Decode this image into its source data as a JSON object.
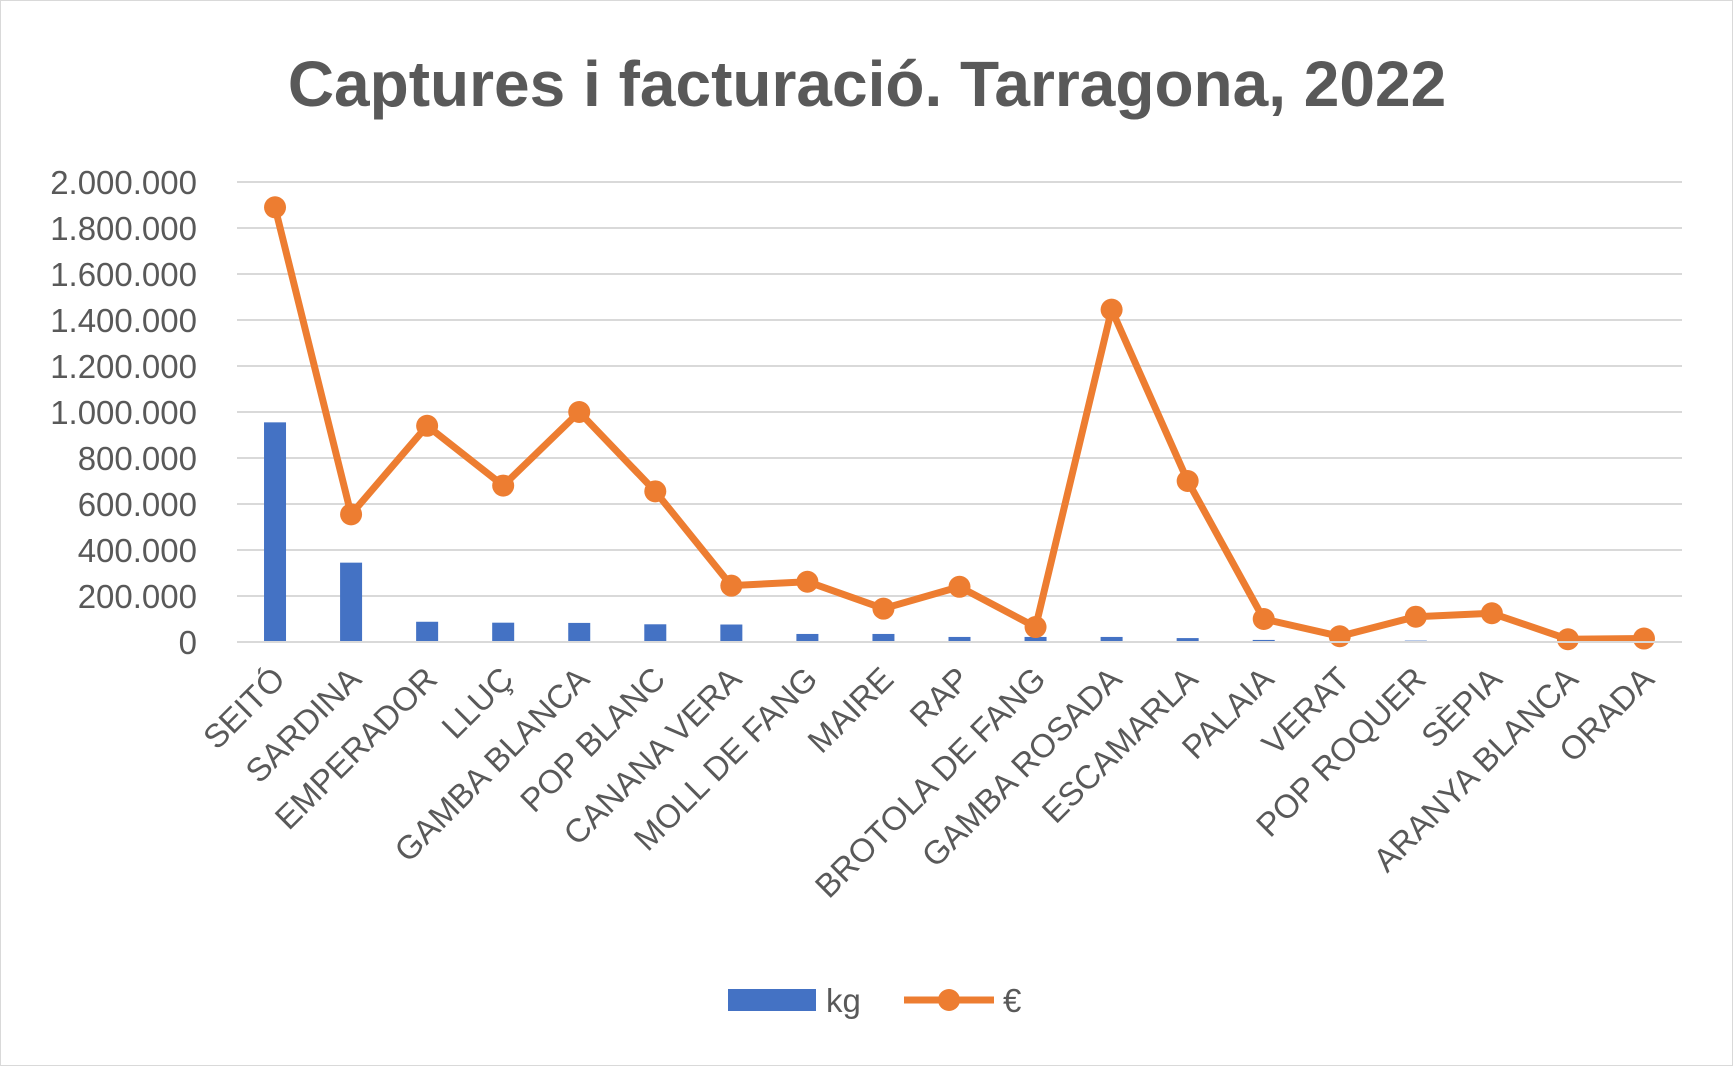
{
  "chart_data": {
    "type": "bar",
    "title": "Captures i facturació. Tarragona, 2022",
    "xlabel": "",
    "ylabel": "",
    "ylim": [
      0,
      2000000
    ],
    "yticks": [
      0,
      200000,
      400000,
      600000,
      800000,
      1000000,
      1200000,
      1400000,
      1600000,
      1800000,
      2000000
    ],
    "ytick_labels": [
      "0",
      "200.000",
      "400.000",
      "600.000",
      "800.000",
      "1.000.000",
      "1.200.000",
      "1.400.000",
      "1.600.000",
      "1.800.000",
      "2.000.000"
    ],
    "grid": true,
    "legend_position": "bottom",
    "categories": [
      "SEITÓ",
      "SARDINA",
      "EMPERADOR",
      "LLUÇ",
      "GAMBA BLANCA",
      "POP BLANC",
      "CANANA VERA",
      "MOLL DE FANG",
      "MAIRE",
      "RAP",
      "BROTOLA DE FANG",
      "GAMBA ROSADA",
      "ESCAMARLA",
      "PALAIA",
      "VERAT",
      "POP ROQUER",
      "SÈPIA",
      "ARANYA BLANCA",
      "ORADA"
    ],
    "series": [
      {
        "name": "kg",
        "type": "bar",
        "color": "#4472C4",
        "values": [
          955000,
          345000,
          88000,
          84000,
          83000,
          77000,
          76000,
          35000,
          35000,
          22000,
          22000,
          22000,
          17000,
          9000,
          4000,
          6000,
          4000,
          2000,
          3000
        ]
      },
      {
        "name": "€",
        "type": "line",
        "color": "#ED7D31",
        "values": [
          1890000,
          555000,
          940000,
          680000,
          1000000,
          655000,
          245000,
          262000,
          145000,
          240000,
          65000,
          1445000,
          700000,
          100000,
          25000,
          110000,
          125000,
          12000,
          15000
        ]
      }
    ]
  }
}
